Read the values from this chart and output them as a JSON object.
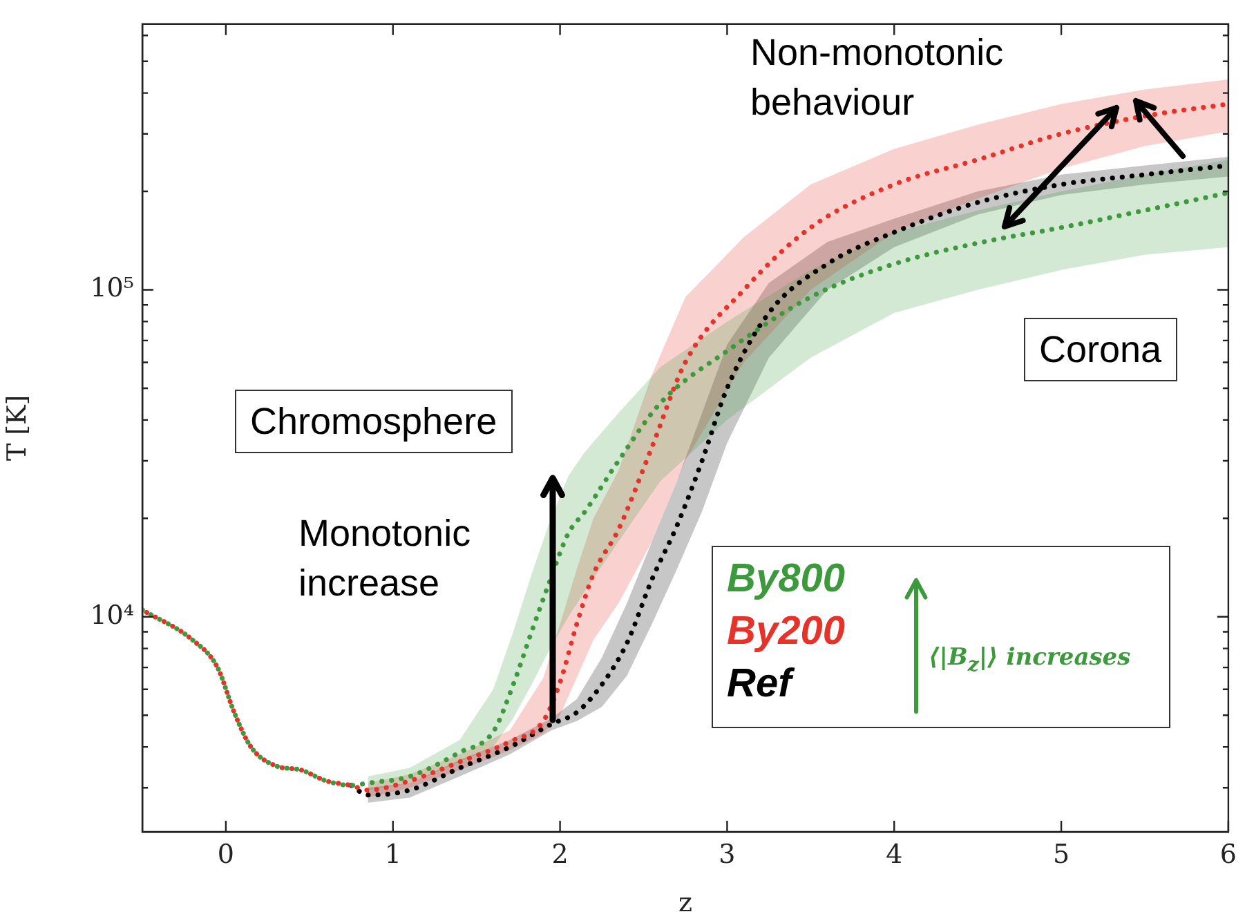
{
  "chart_data": {
    "type": "line",
    "xlabel": "z",
    "ylabel": "T [K]",
    "log": "y",
    "xlim": [
      -0.5,
      6
    ],
    "xticks": [
      0,
      1,
      2,
      3,
      4,
      5,
      6
    ],
    "ylim": [
      2200,
      650000
    ],
    "yticks": [
      {
        "value": 3000,
        "label": null
      },
      {
        "value": 4000,
        "label": null
      },
      {
        "value": 5000,
        "label": null
      },
      {
        "value": 6000,
        "label": null
      },
      {
        "value": 7000,
        "label": null
      },
      {
        "value": 8000,
        "label": null
      },
      {
        "value": 9000,
        "label": null
      },
      {
        "value": 10000,
        "label": "10⁴"
      },
      {
        "value": 20000,
        "label": null
      },
      {
        "value": 30000,
        "label": null
      },
      {
        "value": 40000,
        "label": null
      },
      {
        "value": 50000,
        "label": null
      },
      {
        "value": 60000,
        "label": null
      },
      {
        "value": 70000,
        "label": null
      },
      {
        "value": 80000,
        "label": null
      },
      {
        "value": 90000,
        "label": null
      },
      {
        "value": 100000,
        "label": "10⁵"
      },
      {
        "value": 200000,
        "label": null
      },
      {
        "value": 300000,
        "label": null
      },
      {
        "value": 400000,
        "label": null
      },
      {
        "value": 500000,
        "label": null
      },
      {
        "value": 600000,
        "label": null
      }
    ],
    "grid": false,
    "legend": "bottom right",
    "line_style": "dotted",
    "marker": "none",
    "annotations": [
      "Chromosphere",
      "Corona",
      "Monotonic increase",
      "Non-monotonic behaviour",
      "⟨|B$_{z}$|⟩ increases"
    ],
    "series": [
      {
        "name": "By800",
        "color": "#3c9a3c",
        "x": [
          -0.5,
          -0.2,
          -0.05,
          0.05,
          0.15,
          0.3,
          0.45,
          0.6,
          0.75,
          0.85,
          1.1,
          1.4,
          1.6,
          1.72,
          1.83,
          1.93,
          2.05,
          2.15,
          2.35,
          2.6,
          3.0,
          3.5,
          4.0,
          4.5,
          5.0,
          5.5,
          6.0
        ],
        "values": [
          10500,
          8500,
          7000,
          5100,
          4000,
          3500,
          3400,
          3150,
          3050,
          3100,
          3250,
          3850,
          4450,
          6200,
          9000,
          12500,
          18000,
          21000,
          30000,
          45000,
          65000,
          95000,
          120000,
          139000,
          155000,
          175000,
          198000
        ],
        "lower": [
          null,
          null,
          null,
          null,
          null,
          null,
          null,
          null,
          null,
          2950,
          3100,
          3600,
          4000,
          4900,
          6200,
          7800,
          10000,
          12000,
          17000,
          26000,
          40000,
          62000,
          85000,
          100000,
          115000,
          128000,
          135000
        ],
        "upper": [
          null,
          null,
          null,
          null,
          null,
          null,
          null,
          null,
          null,
          3250,
          3450,
          4200,
          6000,
          9000,
          13500,
          19000,
          27000,
          32000,
          42000,
          58000,
          80000,
          115000,
          150000,
          175000,
          200000,
          225000,
          250000
        ]
      },
      {
        "name": "By200",
        "color": "#e5332a",
        "x": [
          -0.5,
          -0.2,
          -0.05,
          0.05,
          0.15,
          0.3,
          0.45,
          0.6,
          0.75,
          0.85,
          1.1,
          1.4,
          1.7,
          1.9,
          2.0,
          2.1,
          2.2,
          2.35,
          2.55,
          2.75,
          3.1,
          3.5,
          4.0,
          4.5,
          5.0,
          5.5,
          6.0
        ],
        "values": [
          10500,
          8500,
          7000,
          5100,
          4000,
          3500,
          3400,
          3150,
          3050,
          2950,
          3150,
          3600,
          4150,
          4800,
          6300,
          9500,
          13500,
          18500,
          33000,
          60000,
          100000,
          155000,
          210000,
          250000,
          300000,
          340000,
          370000
        ],
        "lower": [
          null,
          null,
          null,
          null,
          null,
          null,
          null,
          null,
          null,
          2800,
          3000,
          3400,
          3900,
          4400,
          5000,
          6500,
          8500,
          11000,
          17000,
          30000,
          60000,
          100000,
          150000,
          190000,
          235000,
          275000,
          305000
        ],
        "upper": [
          null,
          null,
          null,
          null,
          null,
          null,
          null,
          null,
          null,
          3100,
          3300,
          3800,
          4500,
          6500,
          9500,
          14000,
          20000,
          28000,
          55000,
          95000,
          145000,
          210000,
          270000,
          320000,
          370000,
          410000,
          440000
        ]
      },
      {
        "name": "Ref",
        "color": "#000000",
        "x": [
          0.75,
          0.85,
          1.1,
          1.4,
          1.7,
          1.95,
          2.1,
          2.25,
          2.4,
          2.55,
          2.7,
          2.85,
          3.0,
          3.25,
          3.6,
          4.0,
          4.5,
          5.0,
          5.5,
          6.0
        ],
        "values": [
          3050,
          2850,
          2950,
          3450,
          4000,
          4700,
          5100,
          6200,
          8300,
          13000,
          19000,
          30000,
          50000,
          85000,
          120000,
          150000,
          185000,
          210000,
          225000,
          240000
        ],
        "lower": [
          null,
          2700,
          2800,
          3250,
          3800,
          4500,
          4800,
          5300,
          6600,
          9500,
          14000,
          21000,
          34000,
          62000,
          100000,
          135000,
          170000,
          195000,
          210000,
          222000
        ],
        "upper": [
          null,
          3000,
          3100,
          3650,
          4200,
          4900,
          5600,
          7500,
          11000,
          17000,
          26000,
          42000,
          68000,
          105000,
          140000,
          165000,
          200000,
          225000,
          240000,
          255000
        ]
      }
    ]
  }
}
